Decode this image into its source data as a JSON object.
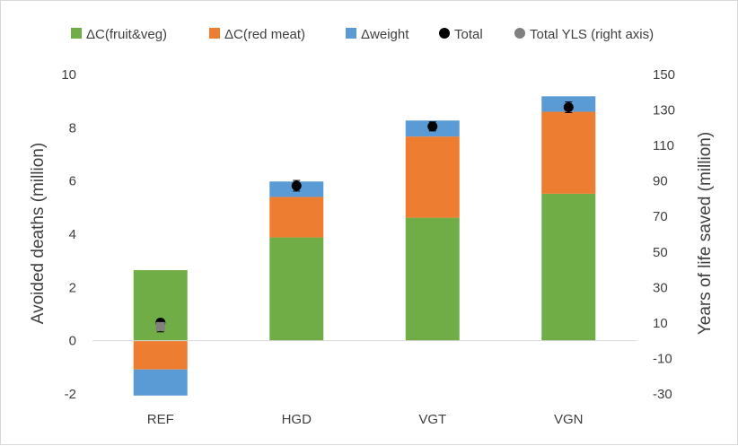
{
  "chart_data": {
    "type": "bar",
    "stacked": true,
    "categories": [
      "REF",
      "HGD",
      "VGT",
      "VGN"
    ],
    "series": [
      {
        "name": "ΔC(fruit&veg)",
        "color": "#70ad47",
        "values": [
          2.65,
          3.88,
          4.62,
          5.52
        ]
      },
      {
        "name": "ΔC(red meat)",
        "color": "#ed7d31",
        "values": [
          -1.08,
          1.52,
          3.05,
          3.08
        ]
      },
      {
        "name": "Δweight",
        "color": "#5b9bd5",
        "values": [
          -0.98,
          0.58,
          0.6,
          0.58
        ]
      }
    ],
    "points": [
      {
        "name": "Total",
        "color": "#000000",
        "axis": "left",
        "values": [
          0.68,
          5.82,
          8.05,
          8.77
        ],
        "error": [
          0.12,
          0.2,
          0.17,
          0.2
        ]
      },
      {
        "name": "Total YLS (right axis)",
        "color": "#808080",
        "axis": "right",
        "values": [
          8,
          null,
          null,
          null
        ],
        "error": [
          3,
          null,
          null,
          null
        ]
      }
    ],
    "y_left": {
      "label": "Avoided deaths (million)",
      "range": [
        -2,
        10
      ],
      "ticks": [
        "-2",
        "0",
        "2",
        "4",
        "6",
        "8",
        "10"
      ]
    },
    "y_right": {
      "label": "Years of life saved (million)",
      "range": [
        -30,
        150
      ],
      "ticks": [
        "-30",
        "-10",
        "10",
        "30",
        "50",
        "70",
        "90",
        "110",
        "130",
        "150"
      ]
    },
    "legend_position": "top",
    "grid": false
  }
}
